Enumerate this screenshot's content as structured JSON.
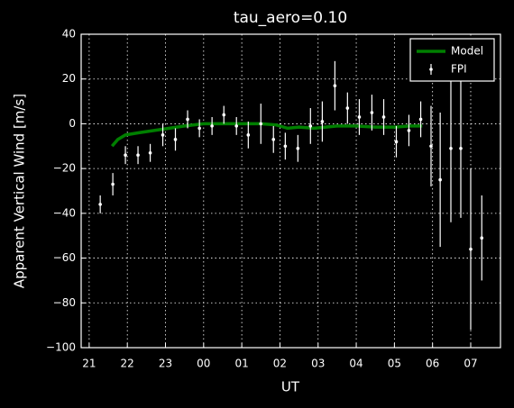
{
  "chart_data": {
    "type": "line_errorbar",
    "title": "tau_aero=0.10",
    "x_label": "UT",
    "y_label": "Apparent Vertical Wind [m/s]",
    "xlim": [
      20.79,
      31.78
    ],
    "ylim": [
      -100,
      40
    ],
    "xticks": [
      {
        "value": 21,
        "label": "21"
      },
      {
        "value": 22,
        "label": "22"
      },
      {
        "value": 23,
        "label": "23"
      },
      {
        "value": 24,
        "label": "00"
      },
      {
        "value": 25,
        "label": "01"
      },
      {
        "value": 26,
        "label": "02"
      },
      {
        "value": 27,
        "label": "03"
      },
      {
        "value": 28,
        "label": "04"
      },
      {
        "value": 29,
        "label": "05"
      },
      {
        "value": 30,
        "label": "06"
      },
      {
        "value": 31,
        "label": "07"
      }
    ],
    "yticks": [
      {
        "value": -100,
        "label": "−100"
      },
      {
        "value": -80,
        "label": "−80"
      },
      {
        "value": -60,
        "label": "−60"
      },
      {
        "value": -40,
        "label": "−40"
      },
      {
        "value": -20,
        "label": "−20"
      },
      0,
      20,
      40
    ],
    "grid": true,
    "legend": "upper right",
    "series": [
      {
        "name": "Model",
        "color": "#007f00",
        "kind": "line",
        "x": [
          21.6,
          21.75,
          21.95,
          22.3,
          22.7,
          23.1,
          23.5,
          24.0,
          24.5,
          25.0,
          25.5,
          25.9,
          26.2,
          26.5,
          26.9,
          27.2,
          27.5,
          28.0,
          28.5,
          29.0,
          29.4,
          29.73
        ],
        "values": [
          -10,
          -7,
          -5,
          -4,
          -3,
          -2,
          -1,
          0,
          0,
          0,
          0,
          -0.5,
          -2,
          -1.5,
          -2,
          -1.5,
          -1,
          -1,
          -1.5,
          -1.5,
          -1,
          -1
        ]
      },
      {
        "name": "FPI",
        "color": "#ffffff",
        "kind": "errorbar",
        "x": [
          21.29,
          21.62,
          21.95,
          22.28,
          22.6,
          22.93,
          23.26,
          23.58,
          23.89,
          24.22,
          24.53,
          24.86,
          25.17,
          25.5,
          25.83,
          26.14,
          26.47,
          26.8,
          27.11,
          27.44,
          27.77,
          28.08,
          28.41,
          28.72,
          29.05,
          29.38,
          29.69,
          29.96,
          30.2,
          30.48,
          30.74,
          31.0,
          31.29
        ],
        "values": [
          -36,
          -27,
          -14,
          -14,
          -13,
          -5,
          -7,
          2,
          -2,
          -1,
          4,
          -1,
          -5,
          0,
          -7,
          -10,
          -11,
          -1,
          1,
          17,
          7,
          3,
          5,
          3,
          -8,
          -3,
          2,
          -10,
          -25,
          -11,
          -11,
          -56,
          -51
        ],
        "errors": [
          4,
          5,
          4,
          4,
          4,
          5,
          5,
          4,
          4,
          4,
          4,
          4,
          6,
          9,
          6,
          6,
          6,
          8,
          9,
          11,
          7,
          8,
          8,
          8,
          7,
          7,
          8,
          18,
          30,
          33,
          31,
          36,
          19
        ]
      }
    ]
  }
}
